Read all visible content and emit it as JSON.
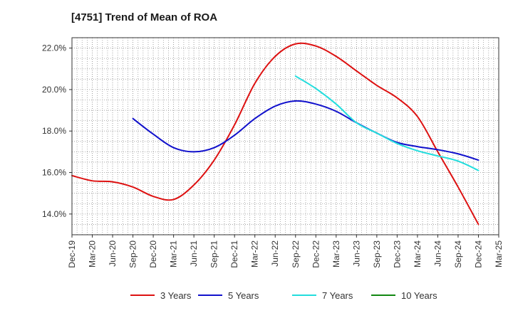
{
  "chart_data": {
    "type": "line",
    "title": "[4751]  Trend of Mean of ROA",
    "xlabel": "",
    "ylabel": "",
    "ylim": [
      13.0,
      22.5
    ],
    "yticks": [
      14.0,
      16.0,
      18.0,
      20.0,
      22.0
    ],
    "ytick_labels": [
      "14.0%",
      "16.0%",
      "18.0%",
      "20.0%",
      "22.0%"
    ],
    "x_tick_labels": [
      "Dec-19",
      "Mar-20",
      "Jun-20",
      "Sep-20",
      "Dec-20",
      "Mar-21",
      "Jun-21",
      "Sep-21",
      "Dec-21",
      "Mar-22",
      "Jun-22",
      "Sep-22",
      "Dec-22",
      "Mar-23",
      "Jun-23",
      "Sep-23",
      "Dec-23",
      "Mar-24",
      "Jun-24",
      "Sep-24",
      "Dec-24",
      "Mar-25"
    ],
    "grid": true,
    "legend_position": "bottom",
    "series": [
      {
        "name": "3 Years",
        "color": "#dd1111",
        "x": [
          0,
          1,
          2,
          3,
          4,
          5,
          6,
          7,
          8,
          9,
          10,
          11,
          12,
          13,
          14,
          15,
          16,
          17,
          18,
          19,
          20
        ],
        "values": [
          15.85,
          15.6,
          15.55,
          15.3,
          14.85,
          14.7,
          15.4,
          16.6,
          18.3,
          20.3,
          21.6,
          22.2,
          22.1,
          21.6,
          20.9,
          20.2,
          19.6,
          18.7,
          17.0,
          15.3,
          13.5
        ]
      },
      {
        "name": "5 Years",
        "color": "#1111cc",
        "x": [
          3,
          4,
          5,
          6,
          7,
          8,
          9,
          10,
          11,
          12,
          13,
          14,
          15,
          16,
          17,
          18,
          19,
          20
        ],
        "values": [
          18.6,
          17.85,
          17.2,
          17.0,
          17.2,
          17.8,
          18.6,
          19.2,
          19.45,
          19.3,
          18.95,
          18.4,
          17.9,
          17.45,
          17.25,
          17.1,
          16.9,
          16.6
        ]
      },
      {
        "name": "7 Years",
        "color": "#22dddd",
        "x": [
          11,
          12,
          13,
          14,
          15,
          16,
          17,
          18,
          19,
          20
        ],
        "values": [
          20.65,
          20.05,
          19.3,
          18.4,
          17.9,
          17.4,
          17.05,
          16.8,
          16.55,
          16.1
        ]
      },
      {
        "name": "10 Years",
        "color": "#118811",
        "x": [],
        "values": []
      }
    ]
  }
}
